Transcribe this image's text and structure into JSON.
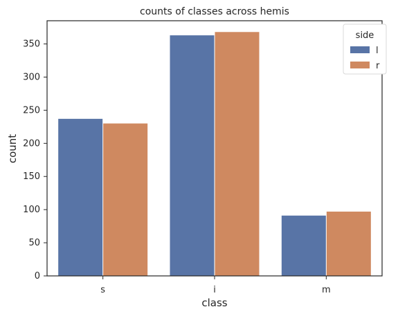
{
  "chart_data": {
    "type": "bar",
    "title": "counts of classes across hemis",
    "xlabel": "class",
    "ylabel": "count",
    "categories": [
      "s",
      "i",
      "m"
    ],
    "series": [
      {
        "name": "l",
        "color": "#5874a6",
        "values": [
          237,
          363,
          91
        ]
      },
      {
        "name": "r",
        "color": "#cf8960",
        "values": [
          230,
          368,
          97
        ]
      }
    ],
    "ylim": [
      0,
      385
    ],
    "yticks": [
      "0",
      "50",
      "100",
      "150",
      "200",
      "250",
      "300",
      "350"
    ],
    "legend": {
      "title": "side",
      "placement": "top-right"
    }
  }
}
